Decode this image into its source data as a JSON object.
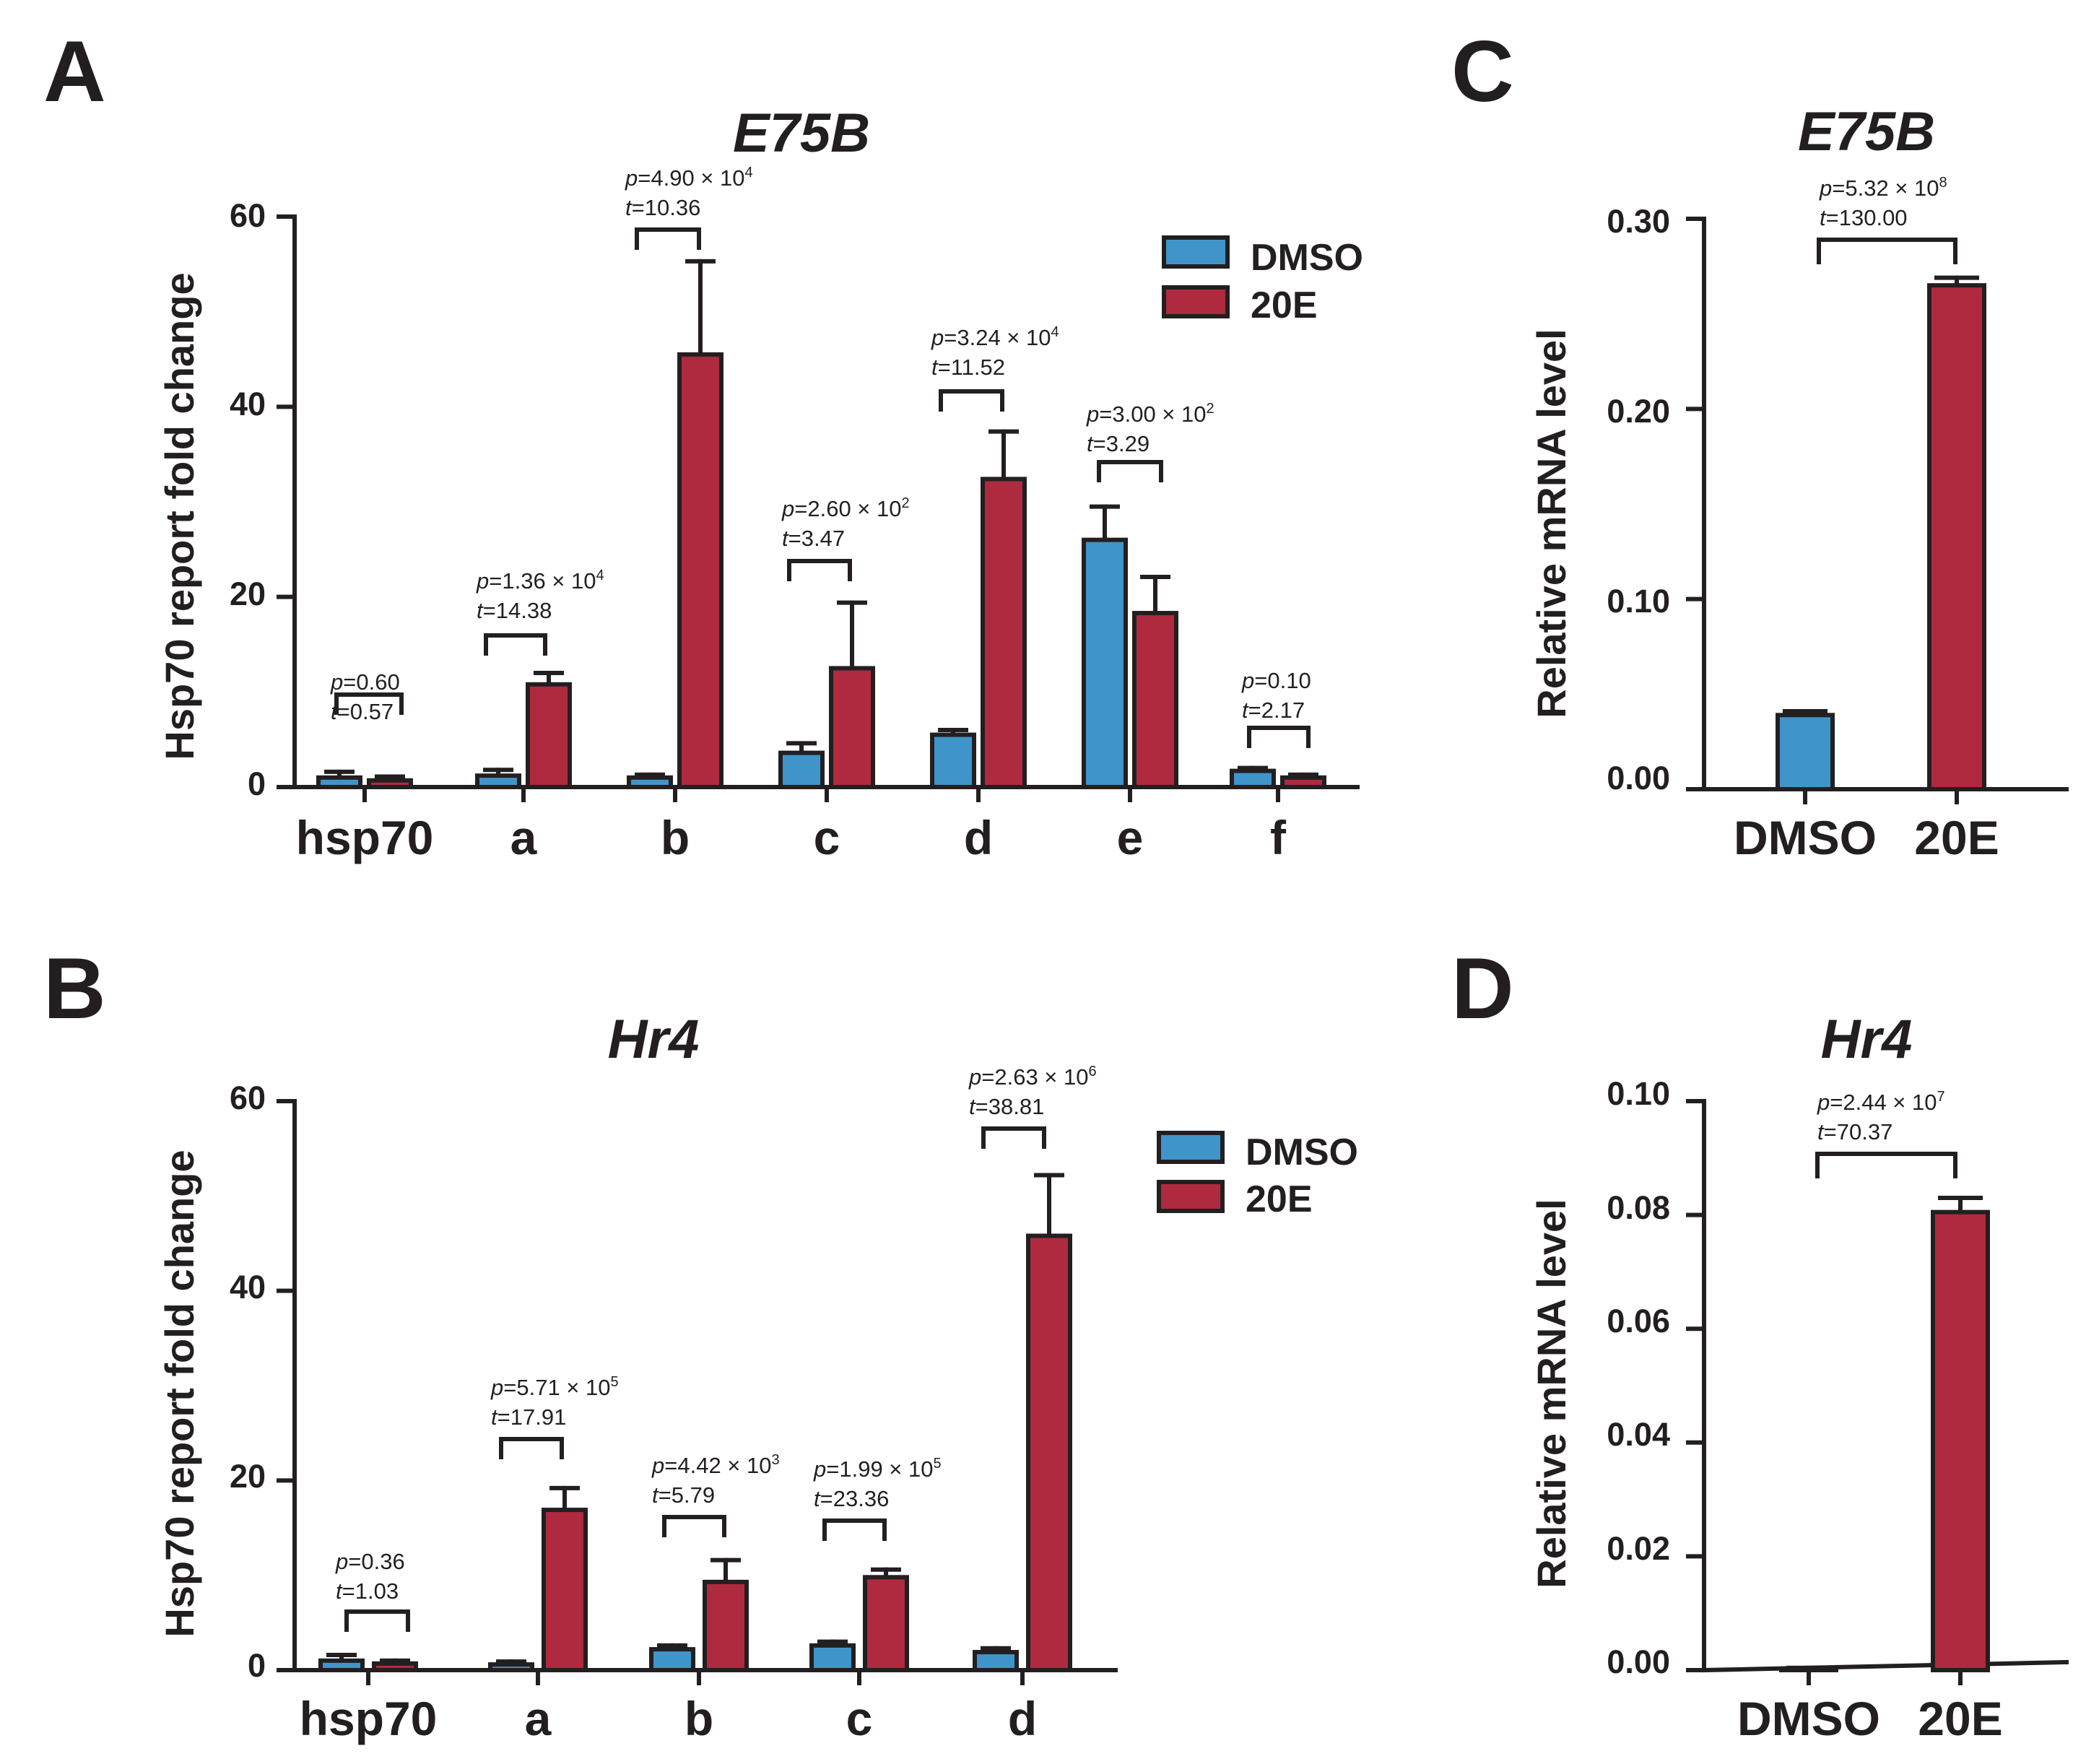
{
  "colors": {
    "dmso": "#3f95ca",
    "e20": "#b02a3f",
    "ink": "#231f20"
  },
  "chart_data": [
    {
      "id": "A",
      "type": "bar",
      "panel_label": "A",
      "title": "E75B",
      "ylabel": "Hsp70 report fold change",
      "ylim": [
        0,
        60
      ],
      "yticks": [
        "0",
        "20",
        "40",
        "60"
      ],
      "categories": [
        "hsp70",
        "a",
        "b",
        "c",
        "d",
        "e",
        "f"
      ],
      "legend": [
        "DMSO",
        "20E"
      ],
      "legend_position": "top-right",
      "series": [
        {
          "name": "DMSO",
          "values": [
            1.0,
            1.2,
            1.0,
            3.6,
            5.5,
            26.0,
            1.7
          ],
          "errors": [
            0.6,
            0.6,
            0.3,
            1.0,
            0.5,
            3.5,
            0.3
          ]
        },
        {
          "name": "20E",
          "values": [
            0.7,
            10.8,
            45.5,
            12.5,
            32.4,
            18.3,
            1.0
          ],
          "errors": [
            0.4,
            1.2,
            9.8,
            6.9,
            5.0,
            3.8,
            0.3
          ]
        }
      ],
      "annotations": [
        {
          "cat": 0,
          "p": "=0.60",
          "t": "=0.57"
        },
        {
          "cat": 1,
          "p": "=1.36 × 10",
          "pexp": "4",
          "t": "=14.38"
        },
        {
          "cat": 2,
          "p": "=4.90 × 10",
          "pexp": "4",
          "t": "=10.36"
        },
        {
          "cat": 3,
          "p": "=2.60 × 10",
          "pexp": "2",
          "t": "=3.47"
        },
        {
          "cat": 4,
          "p": "=3.24 × 10",
          "pexp": "4",
          "t": "=11.52"
        },
        {
          "cat": 5,
          "p": "=3.00 × 10",
          "pexp": "2",
          "t": "=3.29"
        },
        {
          "cat": 6,
          "p": "=0.10",
          "t": "=2.17"
        }
      ]
    },
    {
      "id": "B",
      "type": "bar",
      "panel_label": "B",
      "title": "Hr4",
      "ylabel": "Hsp70 report fold change",
      "ylim": [
        0,
        60
      ],
      "yticks": [
        "0",
        "20",
        "40",
        "60"
      ],
      "categories": [
        "hsp70",
        "a",
        "b",
        "c",
        "d"
      ],
      "legend": [
        "DMSO",
        "20E"
      ],
      "legend_position": "top-right",
      "series": [
        {
          "name": "DMSO",
          "values": [
            1.0,
            0.6,
            2.2,
            2.6,
            1.9
          ],
          "errors": [
            0.6,
            0.3,
            0.4,
            0.4,
            0.4
          ]
        },
        {
          "name": "20E",
          "values": [
            0.7,
            16.9,
            9.3,
            9.8,
            45.8
          ],
          "errors": [
            0.3,
            2.3,
            2.3,
            0.8,
            6.4
          ]
        }
      ],
      "annotations": [
        {
          "cat": 0,
          "p": "=0.36",
          "t": "=1.03"
        },
        {
          "cat": 1,
          "p": "=5.71 × 10",
          "pexp": "5",
          "t": "=17.91"
        },
        {
          "cat": 2,
          "p": "=4.42 × 10",
          "pexp": "3",
          "t": "=5.79"
        },
        {
          "cat": 3,
          "p": "=1.99 × 10",
          "pexp": "5",
          "t": "=23.36"
        },
        {
          "cat": 4,
          "p": "=2.63 × 10",
          "pexp": "6",
          "t": "=38.81"
        }
      ]
    },
    {
      "id": "C",
      "type": "bar",
      "panel_label": "C",
      "title": "E75B",
      "ylabel": "Relative mRNA level",
      "ylim": [
        0,
        0.3
      ],
      "yticks": [
        "0.00",
        "0.10",
        "0.20",
        "0.30"
      ],
      "categories": [
        "DMSO",
        "20E"
      ],
      "values": [
        0.039,
        0.265
      ],
      "errors": [
        0.002,
        0.004
      ],
      "annotation": {
        "p": "=5.32 × 10",
        "pexp": "8",
        "t": "=130.00"
      }
    },
    {
      "id": "D",
      "type": "bar",
      "panel_label": "D",
      "title": "Hr4",
      "ylabel": "Relative mRNA level",
      "ylim": [
        0,
        0.1
      ],
      "yticks": [
        "0.00",
        "0.02",
        "0.04",
        "0.06",
        "0.08",
        "0.10"
      ],
      "categories": [
        "DMSO",
        "20E"
      ],
      "values": [
        0.0002,
        0.0805
      ],
      "errors": [
        0.0002,
        0.0025
      ],
      "annotation": {
        "p": "=2.44 × 10",
        "pexp": "7",
        "t": "=70.37"
      }
    }
  ]
}
